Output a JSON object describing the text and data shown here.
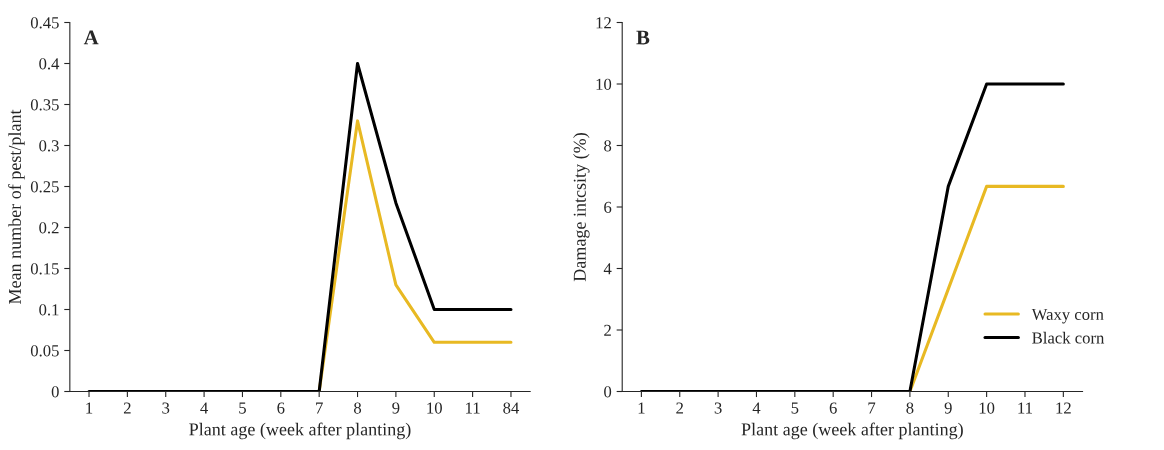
{
  "chart_data": [
    {
      "type": "line",
      "title": "A",
      "xlabel": "Plant age (week after planting)",
      "ylabel": "Mean number of pest/plant",
      "categories": [
        "1",
        "2",
        "3",
        "4",
        "5",
        "6",
        "7",
        "8",
        "9",
        "10",
        "11",
        "84"
      ],
      "series": [
        {
          "color": "#e8b923",
          "values": [
            null,
            null,
            null,
            null,
            null,
            null,
            0,
            0.33,
            0.13,
            0.06,
            0.06,
            0.06
          ]
        },
        {
          "color": "#000000",
          "values": [
            0,
            0,
            0,
            0,
            0,
            0,
            0,
            0.4,
            0.23,
            0.1,
            0.1,
            0.1
          ]
        }
      ],
      "ylim": [
        0,
        0.45
      ],
      "yticks": [
        0,
        0.05,
        0.1,
        0.15,
        0.2,
        0.25,
        0.3,
        0.35,
        0.4,
        0.45
      ],
      "grid": false,
      "legend": false
    },
    {
      "type": "line",
      "title": "B",
      "xlabel": "Plant age (week after planting)",
      "ylabel": "Damage intcsity (%)",
      "categories": [
        "1",
        "2",
        "3",
        "4",
        "5",
        "6",
        "7",
        "8",
        "9",
        "10",
        "11",
        "12"
      ],
      "series": [
        {
          "name": "Waxy corn",
          "color": "#e8b923",
          "values": [
            null,
            null,
            null,
            null,
            null,
            null,
            null,
            0,
            3.33,
            6.67,
            6.67,
            6.67
          ]
        },
        {
          "name": "Black corn",
          "color": "#000000",
          "values": [
            0,
            0,
            0,
            0,
            0,
            0,
            0,
            0,
            6.67,
            10,
            10,
            10
          ]
        }
      ],
      "ylim": [
        0,
        12
      ],
      "yticks": [
        0,
        2,
        4,
        6,
        8,
        10,
        12
      ],
      "grid": false,
      "legend": "bottom right"
    }
  ]
}
